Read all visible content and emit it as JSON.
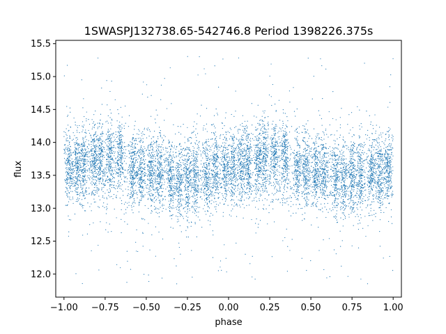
{
  "chart_data": {
    "type": "scatter",
    "title": "1SWASPJ132738.65-542746.8 Period 1398226.375s",
    "xlabel": "phase",
    "ylabel": "flux",
    "xlim": [
      -1.05,
      1.05
    ],
    "ylim": [
      11.65,
      15.55
    ],
    "xticks": [
      -1.0,
      -0.75,
      -0.5,
      -0.25,
      0.0,
      0.25,
      0.5,
      0.75,
      1.0
    ],
    "xtick_labels": [
      "−1.00",
      "−0.75",
      "−0.50",
      "−0.25",
      "0.00",
      "0.25",
      "0.50",
      "0.75",
      "1.00"
    ],
    "yticks": [
      12.0,
      12.5,
      13.0,
      13.5,
      14.0,
      14.5,
      15.0,
      15.5
    ],
    "ytick_labels": [
      "12.0",
      "12.5",
      "13.0",
      "13.5",
      "14.0",
      "14.5",
      "15.0",
      "15.5"
    ],
    "grid": false,
    "marker_color": "#1f77b4",
    "series": [
      {
        "phase_range": [
          -1.0,
          1.0
        ],
        "flux_median": 13.6,
        "flux_core_range": [
          13.0,
          14.2
        ],
        "flux_outlier_range": [
          11.85,
          15.35
        ],
        "clusters": [
          {
            "phase": -0.97,
            "flux_center": 13.65
          },
          {
            "phase": -0.92,
            "flux_center": 13.65
          },
          {
            "phase": -0.88,
            "flux_center": 13.7
          },
          {
            "phase": -0.82,
            "flux_center": 13.75
          },
          {
            "phase": -0.78,
            "flux_center": 13.8
          },
          {
            "phase": -0.72,
            "flux_center": 13.85
          },
          {
            "phase": -0.66,
            "flux_center": 13.8
          },
          {
            "phase": -0.58,
            "flux_center": 13.6
          },
          {
            "phase": -0.53,
            "flux_center": 13.55
          },
          {
            "phase": -0.47,
            "flux_center": 13.55
          },
          {
            "phase": -0.42,
            "flux_center": 13.5
          },
          {
            "phase": -0.35,
            "flux_center": 13.45
          },
          {
            "phase": -0.3,
            "flux_center": 13.4
          },
          {
            "phase": -0.25,
            "flux_center": 13.4
          },
          {
            "phase": -0.2,
            "flux_center": 13.45
          },
          {
            "phase": -0.13,
            "flux_center": 13.5
          },
          {
            "phase": -0.08,
            "flux_center": 13.55
          },
          {
            "phase": -0.02,
            "flux_center": 13.6
          },
          {
            "phase": 0.03,
            "flux_center": 13.65
          },
          {
            "phase": 0.08,
            "flux_center": 13.65
          },
          {
            "phase": 0.12,
            "flux_center": 13.7
          },
          {
            "phase": 0.18,
            "flux_center": 13.75
          },
          {
            "phase": 0.22,
            "flux_center": 13.8
          },
          {
            "phase": 0.28,
            "flux_center": 13.85
          },
          {
            "phase": 0.34,
            "flux_center": 13.8
          },
          {
            "phase": 0.42,
            "flux_center": 13.6
          },
          {
            "phase": 0.47,
            "flux_center": 13.55
          },
          {
            "phase": 0.53,
            "flux_center": 13.55
          },
          {
            "phase": 0.58,
            "flux_center": 13.5
          },
          {
            "phase": 0.65,
            "flux_center": 13.45
          },
          {
            "phase": 0.7,
            "flux_center": 13.4
          },
          {
            "phase": 0.75,
            "flux_center": 13.4
          },
          {
            "phase": 0.8,
            "flux_center": 13.45
          },
          {
            "phase": 0.87,
            "flux_center": 13.5
          },
          {
            "phase": 0.92,
            "flux_center": 13.55
          },
          {
            "phase": 0.97,
            "flux_center": 13.6
          }
        ]
      }
    ]
  }
}
